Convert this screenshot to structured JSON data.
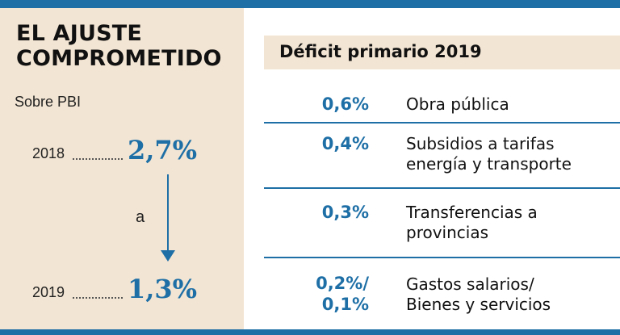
{
  "left": {
    "title": "EL AJUSTE\nCOMPROMETIDO",
    "subtitle": "Sobre PBI",
    "from": {
      "year": "2018",
      "value": "2,7%"
    },
    "connector": "a",
    "to": {
      "year": "2019",
      "value": "1,3%"
    }
  },
  "right": {
    "header": "Déficit primario 2019",
    "rows": [
      {
        "pct": "0,6%",
        "desc": "Obra pública"
      },
      {
        "pct": "0,4%",
        "desc": "Subsidios a tarifas\nenergía y transporte"
      },
      {
        "pct": "0,3%",
        "desc": "Transferencias a\nprovincias"
      },
      {
        "pct": "0,2%/\n0,1%",
        "desc": "Gastos salarios/\nBienes y servicios"
      }
    ]
  },
  "colors": {
    "accent": "#1e6fa6",
    "panel": "#f3e5d3"
  }
}
